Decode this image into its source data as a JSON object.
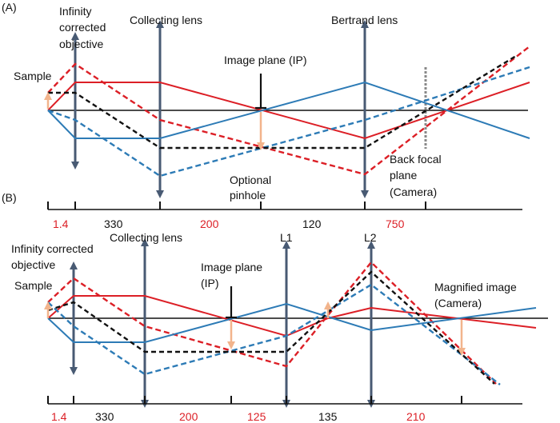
{
  "panel_a": {
    "tag": "(A)",
    "labels": {
      "objective": [
        "Infinity",
        "corrected",
        "objective"
      ],
      "sample": "Sample",
      "collecting_lens": "Collecting lens",
      "image_plane": "Image plane (IP)",
      "bertrand_lens": "Bertrand lens",
      "pinhole": [
        "Optional",
        "pinhole"
      ],
      "back_focal_plane": [
        "Back focal",
        "plane",
        "(Camera)"
      ]
    },
    "distances": [
      "1.4",
      "330",
      "200",
      "120",
      "750"
    ]
  },
  "panel_b": {
    "tag": "(B)",
    "labels": {
      "objective": [
        "Infinity corrected",
        "objective"
      ],
      "sample": "Sample",
      "collecting_lens": "Collecting lens",
      "image_plane": [
        "Image plane",
        "(IP)"
      ],
      "l1": "L1",
      "l2": "L2",
      "magnified_image": [
        "Magnified image",
        "(Camera)"
      ]
    },
    "distances": [
      "1.4",
      "330",
      "200",
      "125",
      "135",
      "210"
    ]
  },
  "colors": {
    "red": "#dc1f26",
    "blue": "#2d7bb6",
    "black": "#111111",
    "lens": "#485a73",
    "arrow": "#f2b48c",
    "red_distance": "#dc1f26",
    "black_distance": "#111111"
  }
}
